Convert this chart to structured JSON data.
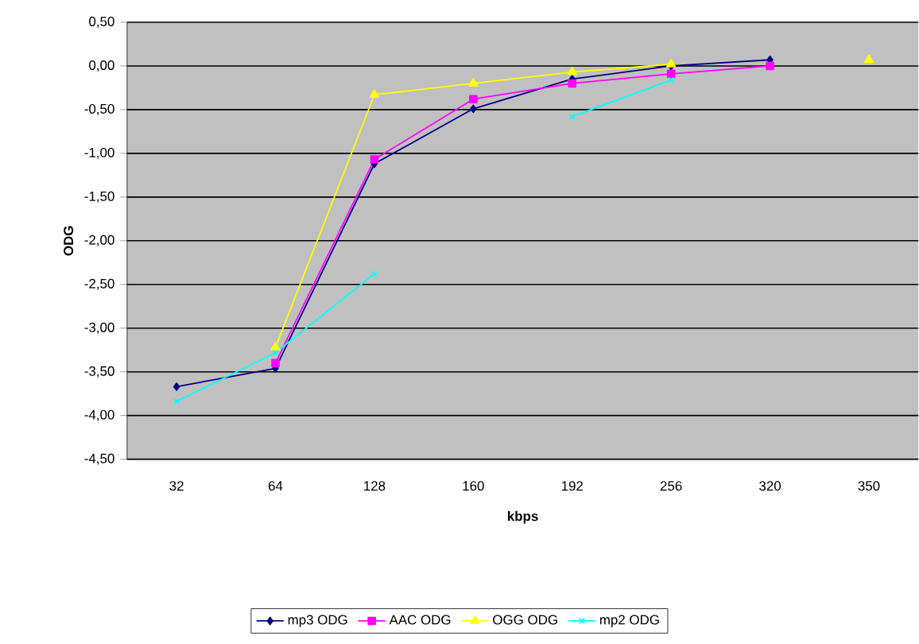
{
  "chart_data": {
    "type": "line",
    "xlabel": "kbps",
    "ylabel": "ODG",
    "categories": [
      "32",
      "64",
      "128",
      "160",
      "192",
      "256",
      "320",
      "350"
    ],
    "series": [
      {
        "name": "mp3 ODG",
        "color": "#000080",
        "marker": "diamond",
        "values": [
          -3.67,
          -3.46,
          -1.12,
          -0.49,
          -0.15,
          0.0,
          0.07,
          null
        ]
      },
      {
        "name": "AAC ODG",
        "color": "#ff00ff",
        "marker": "square",
        "values": [
          null,
          -3.4,
          -1.07,
          -0.38,
          -0.2,
          -0.09,
          0.0,
          null
        ]
      },
      {
        "name": "OGG ODG",
        "color": "#ffff00",
        "marker": "triangle",
        "values": [
          null,
          -3.22,
          -0.33,
          -0.2,
          -0.07,
          0.02,
          null,
          0.07
        ]
      },
      {
        "name": "mp2 ODG",
        "color": "#00ffff",
        "marker": "cross",
        "values": [
          -3.84,
          -3.28,
          -2.38,
          null,
          -0.58,
          -0.16,
          null,
          null
        ]
      }
    ],
    "ylim": [
      -4.5,
      0.5
    ],
    "yticks": [
      {
        "value": 0.5,
        "label": "0,50"
      },
      {
        "value": 0,
        "label": "0,00"
      },
      {
        "value": -0.5,
        "label": "-0,50"
      },
      {
        "value": -1,
        "label": "-1,00"
      },
      {
        "value": -1.5,
        "label": "-1,50"
      },
      {
        "value": -2,
        "label": "-2,00"
      },
      {
        "value": -2.5,
        "label": "-2,50"
      },
      {
        "value": -3,
        "label": "-3,00"
      },
      {
        "value": -3.5,
        "label": "-3,50"
      },
      {
        "value": -4,
        "label": "-4,00"
      },
      {
        "value": -4.5,
        "label": "-4,50"
      }
    ],
    "grid": "y",
    "legend": "bottom",
    "line_style": "solid"
  }
}
